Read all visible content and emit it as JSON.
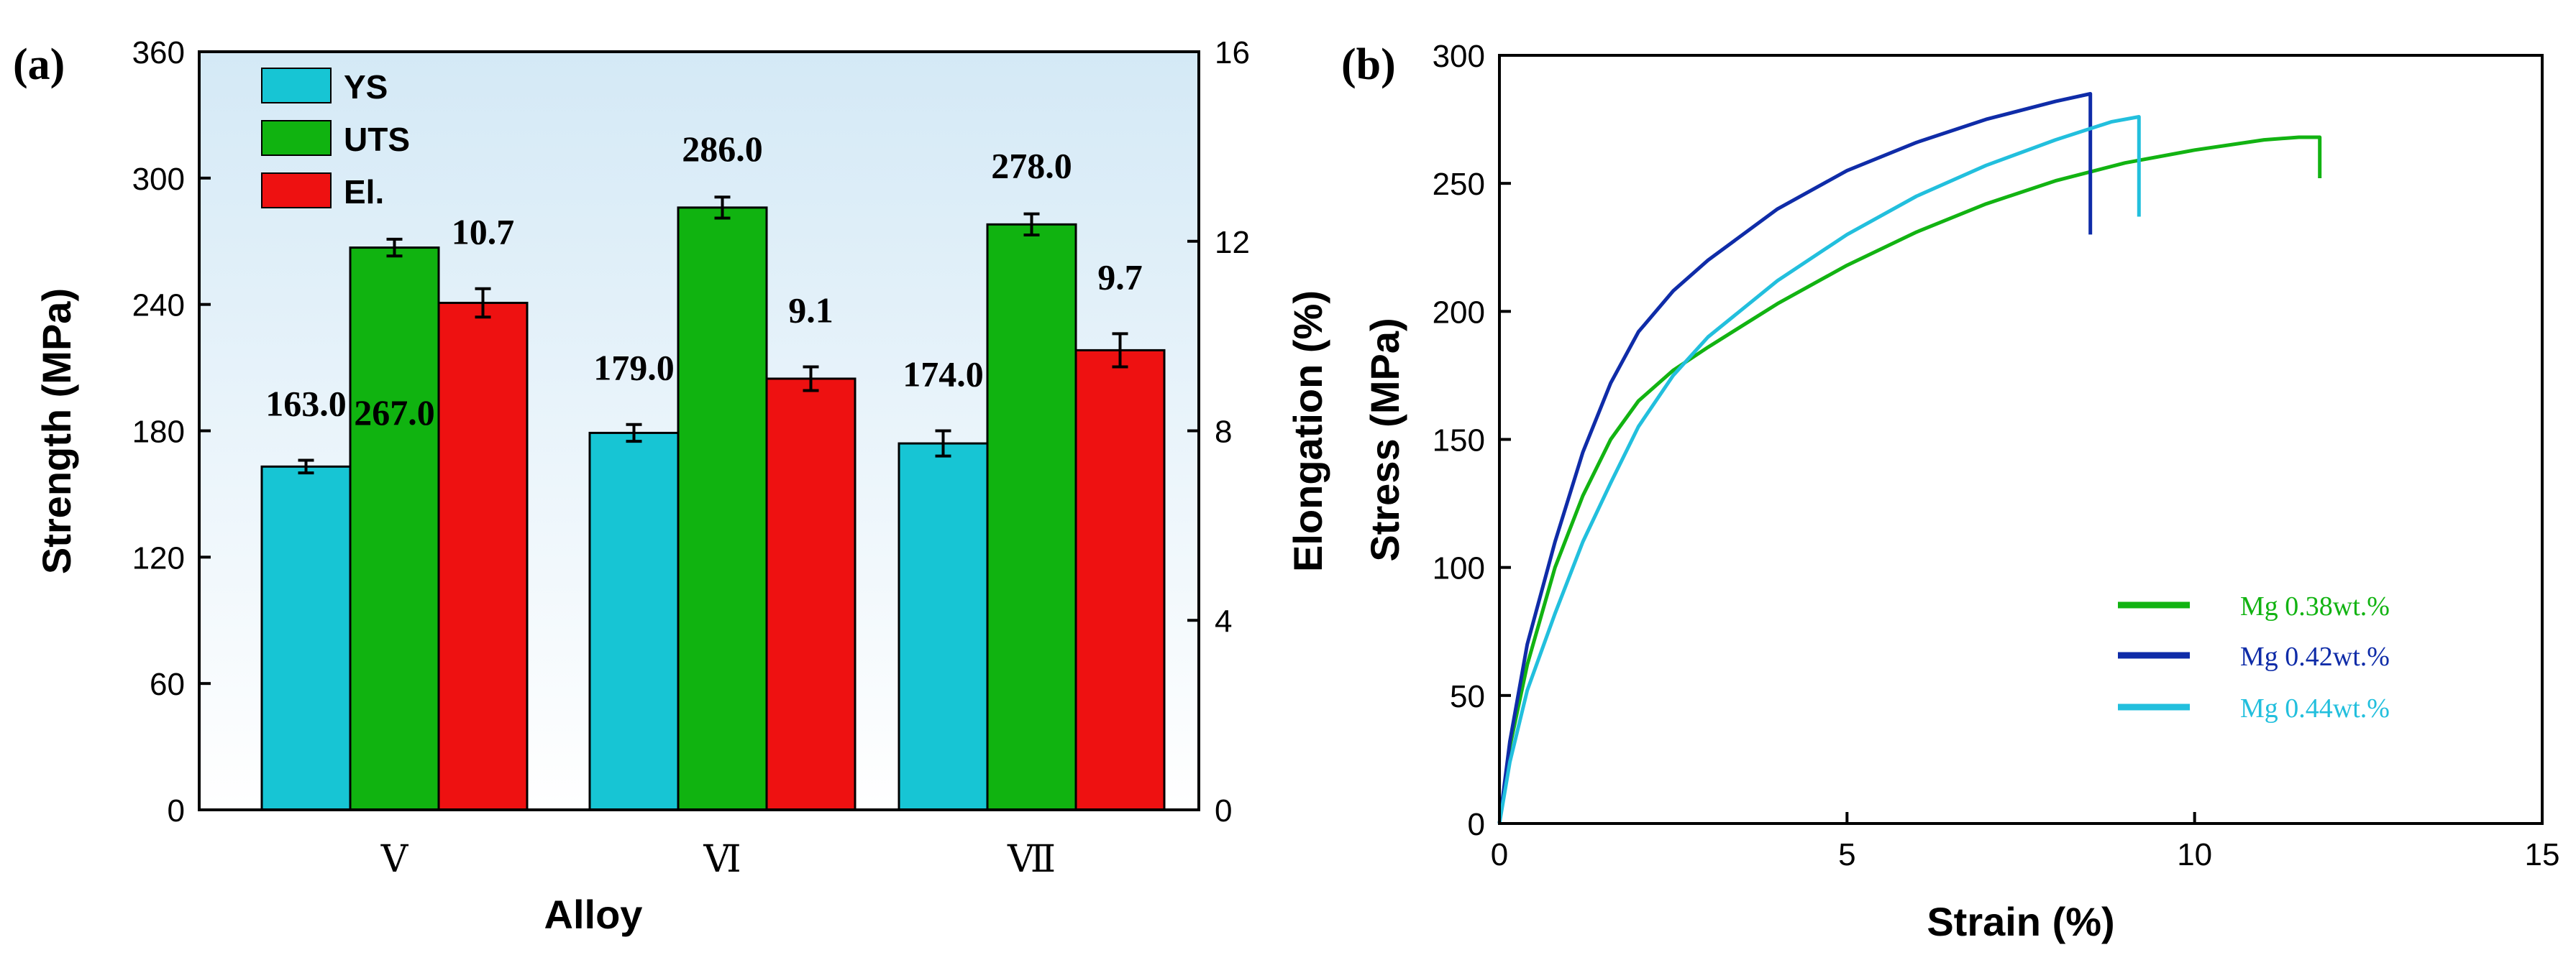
{
  "panel_a": {
    "label": "(a)",
    "colors": {
      "ys": "#17c5d4",
      "uts": "#10b310",
      "el": "#ee1111",
      "plot_bg_top": "#d4e9f6",
      "plot_bg_bottom": "#ffffff"
    },
    "legend": [
      "YS",
      "UTS",
      "El."
    ]
  },
  "panel_b": {
    "label": "(b)",
    "legend": [
      "Mg 0.38wt.%",
      "Mg 0.42wt.%",
      "Mg 0.44wt.%"
    ]
  },
  "chart_data": [
    {
      "type": "bar",
      "title": "",
      "xlabel": "Alloy",
      "ylabel": "Strength (MPa)",
      "y2label": "Elongation (%)",
      "categories": [
        "V",
        "VI",
        "VII"
      ],
      "category_tick_labels": [
        "Ⅴ",
        "Ⅵ",
        "Ⅶ"
      ],
      "ylim": [
        0,
        360
      ],
      "yticks": [
        0,
        60,
        120,
        180,
        240,
        300,
        360
      ],
      "y2lim": [
        0,
        16
      ],
      "y2ticks": [
        0,
        4,
        8,
        12,
        16
      ],
      "series": [
        {
          "name": "YS",
          "axis": "left",
          "values": [
            163.0,
            179.0,
            174.0
          ],
          "errors": [
            3,
            4,
            6
          ],
          "labels": [
            "163.0",
            "179.0",
            "174.0"
          ]
        },
        {
          "name": "UTS",
          "axis": "left",
          "values": [
            267.0,
            286.0,
            278.0
          ],
          "errors": [
            4,
            5,
            5
          ],
          "labels": [
            "267.0",
            "286.0",
            "278.0"
          ]
        },
        {
          "name": "El.",
          "axis": "right",
          "values": [
            10.7,
            9.1,
            9.7
          ],
          "errors": [
            0.3,
            0.25,
            0.35
          ],
          "labels": [
            "10.7",
            "9.1",
            "9.7"
          ]
        }
      ],
      "legend_position": "top-left"
    },
    {
      "type": "line",
      "title": "",
      "xlabel": "Strain (%)",
      "ylabel": "Stress (MPa)",
      "xlim": [
        0,
        15
      ],
      "ylim": [
        0,
        300
      ],
      "xticks": [
        0,
        5,
        10,
        15
      ],
      "yticks": [
        0,
        50,
        100,
        150,
        200,
        250,
        300
      ],
      "series": [
        {
          "name": "Mg 0.38wt.%",
          "color": "#12b312",
          "x": [
            0,
            0.15,
            0.4,
            0.8,
            1.2,
            1.6,
            2.0,
            2.5,
            3,
            4,
            5,
            6,
            7,
            8,
            9,
            10,
            11,
            11.5,
            11.8,
            11.8
          ],
          "y": [
            0,
            30,
            62,
            100,
            128,
            150,
            165,
            177,
            186,
            203,
            218,
            231,
            242,
            251,
            258,
            263,
            267,
            268,
            268,
            252
          ]
        },
        {
          "name": "Mg 0.42wt.%",
          "color": "#0f2ca8",
          "x": [
            0,
            0.15,
            0.4,
            0.8,
            1.2,
            1.6,
            2.0,
            2.5,
            3,
            4,
            5,
            6,
            7,
            8,
            8.5,
            8.5
          ],
          "y": [
            0,
            32,
            70,
            110,
            145,
            172,
            192,
            208,
            220,
            240,
            255,
            266,
            275,
            282,
            285,
            230
          ]
        },
        {
          "name": "Mg 0.44wt.%",
          "color": "#22bfdd",
          "x": [
            0,
            0.15,
            0.4,
            0.8,
            1.2,
            1.6,
            2.0,
            2.5,
            3,
            4,
            5,
            6,
            7,
            8,
            8.8,
            9.2,
            9.2
          ],
          "y": [
            0,
            24,
            52,
            82,
            110,
            133,
            155,
            175,
            190,
            212,
            230,
            245,
            257,
            267,
            274,
            276,
            237
          ]
        }
      ],
      "legend_position": "bottom-right"
    }
  ]
}
